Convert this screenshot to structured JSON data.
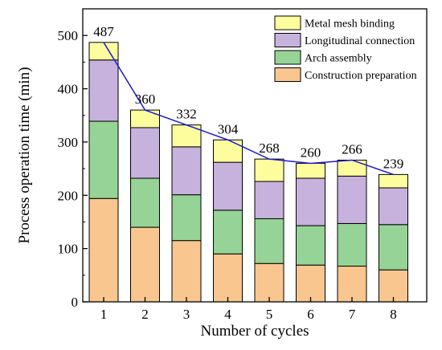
{
  "chart_data": {
    "type": "bar",
    "stacked": true,
    "xlabel": "Number of cycles",
    "ylabel": "Process operation time (min)",
    "categories": [
      "1",
      "2",
      "3",
      "4",
      "5",
      "6",
      "7",
      "8"
    ],
    "ylim": [
      0,
      550
    ],
    "yticks": [
      0,
      100,
      200,
      300,
      400,
      500
    ],
    "grid": false,
    "legend": "top-right",
    "series": [
      {
        "name": "Construction preparation",
        "color": "#FAC68F",
        "values": [
          194,
          140,
          115,
          90,
          72,
          69,
          67,
          60
        ]
      },
      {
        "name": "Arch assembly",
        "color": "#96D396",
        "values": [
          145,
          92,
          86,
          82,
          84,
          74,
          80,
          85
        ]
      },
      {
        "name": "Longitudinal connection",
        "color": "#C7B2DD",
        "values": [
          115,
          95,
          90,
          90,
          70,
          89,
          89,
          69
        ]
      },
      {
        "name": "Metal mesh binding",
        "color": "#FDFD9E",
        "values": [
          33,
          33,
          41,
          42,
          42,
          28,
          30,
          25
        ]
      }
    ],
    "totals": [
      487,
      360,
      332,
      304,
      268,
      260,
      266,
      239
    ],
    "total_labels": [
      "487",
      "360",
      "332",
      "304",
      "268",
      "260",
      "266",
      "239"
    ],
    "trend_line_color": "#1B1BD6",
    "legend_order": [
      "Metal mesh binding",
      "Longitudinal connection",
      "Arch assembly",
      "Construction preparation"
    ]
  }
}
